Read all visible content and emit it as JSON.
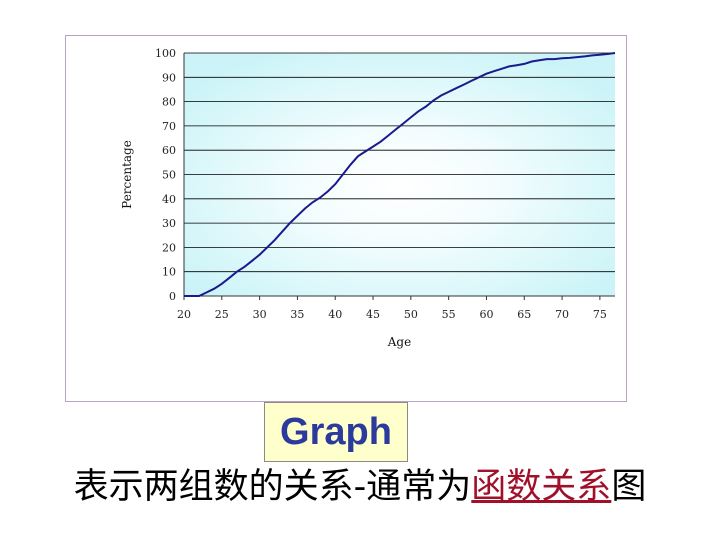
{
  "slide": {
    "label": "Graph",
    "caption_prefix": "表示两组数的关系-通常为",
    "caption_highlight": "函数关系",
    "caption_suffix": "图"
  },
  "colors": {
    "line": "#1a1a8c",
    "plot_background": "#ccf4f8",
    "plot_background_center": "#ffffff",
    "label_text": "#2b3a9c",
    "label_background": "#ffffcc",
    "highlight_text": "#a0102a"
  },
  "chart_data": {
    "type": "line",
    "title": "",
    "xlabel": "Age",
    "ylabel": "Percentage",
    "xlim": [
      20,
      77
    ],
    "ylim": [
      0,
      100
    ],
    "grid": true,
    "legend": "none",
    "x_ticks": [
      20,
      25,
      30,
      35,
      40,
      45,
      50,
      55,
      60,
      65,
      70,
      75
    ],
    "x_tick_labels": [
      "20",
      "25",
      "30",
      "35",
      "40",
      "45",
      "50",
      "55",
      "60",
      "65",
      "70",
      "75"
    ],
    "y_ticks": [
      0,
      10,
      20,
      30,
      40,
      50,
      60,
      70,
      80,
      90,
      100
    ],
    "y_tick_labels": [
      "0",
      "10",
      "20",
      "30",
      "40",
      "50",
      "60",
      "70",
      "80",
      "90",
      "100"
    ],
    "series": [
      {
        "x": [
          20,
          21,
          22,
          23,
          24,
          25,
          26,
          27,
          28,
          29,
          30,
          31,
          32,
          33,
          34,
          35,
          36,
          37,
          38,
          39,
          40,
          41,
          42,
          43,
          44,
          45,
          46,
          47,
          48,
          49,
          50,
          51,
          52,
          53,
          54,
          55,
          56,
          57,
          58,
          59,
          60,
          61,
          62,
          63,
          64,
          65,
          66,
          67,
          68,
          69,
          70,
          71,
          72,
          73,
          74,
          75,
          76,
          77
        ],
        "y": [
          0,
          0,
          0,
          1.5,
          3,
          5,
          7.5,
          10,
          12,
          14.5,
          17,
          20,
          23,
          26.5,
          30,
          33,
          36,
          38.5,
          40.5,
          43,
          46,
          50,
          54,
          57.5,
          59.5,
          61.5,
          63.5,
          66,
          68.5,
          71,
          73.5,
          76,
          78,
          80.5,
          82.5,
          84,
          85.5,
          87,
          88.5,
          90,
          91.5,
          92.5,
          93.5,
          94.5,
          95,
          95.5,
          96.5,
          97,
          97.5,
          97.5,
          97.8,
          98,
          98.3,
          98.6,
          99,
          99.3,
          99.6,
          100
        ]
      }
    ]
  }
}
